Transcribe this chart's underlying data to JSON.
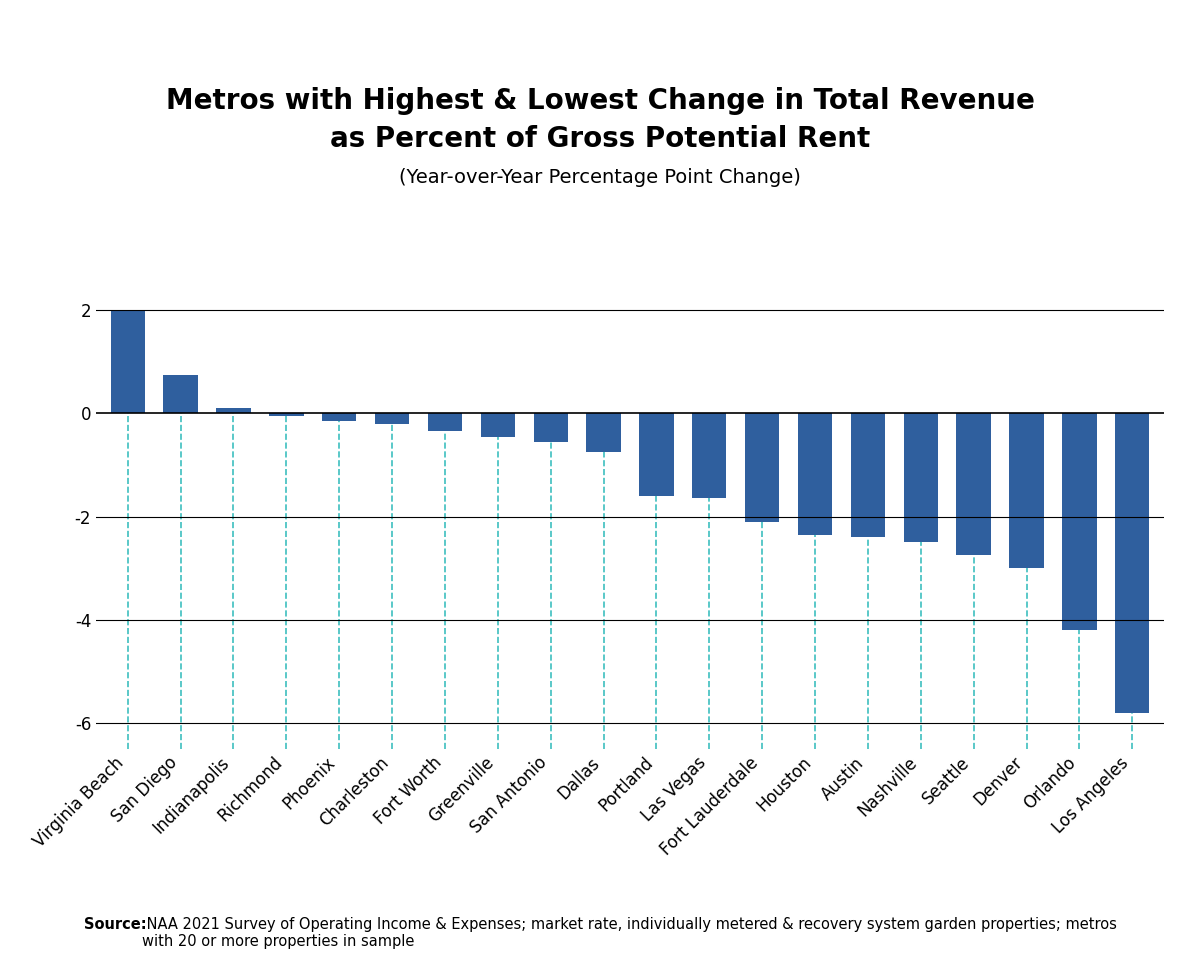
{
  "title_line1": "Metros with Highest & Lowest Change in Total Revenue",
  "title_line2": "as Percent of Gross Potential Rent",
  "subtitle": "(Year-over-Year Percentage Point Change)",
  "source_bold": "Source:",
  "source_rest": " NAA 2021 Survey of Operating Income & Expenses; market rate, individually metered & recovery system garden properties; metros\nwith 20 or more properties in sample",
  "categories": [
    "Virginia Beach",
    "San Diego",
    "Indianapolis",
    "Richmond",
    "Phoenix",
    "Charleston",
    "Fort Worth",
    "Greenville",
    "San Antonio",
    "Dallas",
    "Portland",
    "Las Vegas",
    "Fort Lauderdale",
    "Houston",
    "Austin",
    "Nashville",
    "Seattle",
    "Denver",
    "Orlando",
    "Los Angeles"
  ],
  "values": [
    2.0,
    0.75,
    0.1,
    -0.05,
    -0.15,
    -0.2,
    -0.35,
    -0.45,
    -0.55,
    -0.75,
    -1.6,
    -1.65,
    -2.1,
    -2.35,
    -2.4,
    -2.5,
    -2.75,
    -3.0,
    -4.2,
    -5.8
  ],
  "bar_color": "#2F5F9E",
  "dashed_line_color": "#3DBFBF",
  "background_color": "#FFFFFF",
  "ylim": [
    -6.5,
    2.8
  ],
  "yticks": [
    -6,
    -4,
    -2,
    0,
    2
  ],
  "title_fontsize": 20,
  "subtitle_fontsize": 14,
  "tick_fontsize": 12,
  "source_fontsize": 10.5
}
